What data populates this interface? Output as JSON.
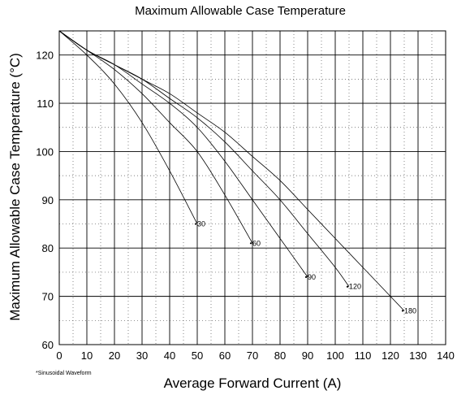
{
  "chart_data": {
    "type": "line",
    "title": "Maximum Allowable Case Temperature",
    "xlabel": "Average Forward Current (A)",
    "ylabel": "Maximum Allowable Case Temperature (°C)",
    "xlim": [
      0,
      140
    ],
    "ylim": [
      60,
      125
    ],
    "x_ticks": [
      "0",
      "10",
      "20",
      "30",
      "40",
      "50",
      "60",
      "70",
      "80",
      "90",
      "100",
      "110",
      "120",
      "130",
      "140"
    ],
    "y_ticks": [
      "60",
      "70",
      "80",
      "90",
      "100",
      "110",
      "120"
    ],
    "grid": true,
    "footnote": "*Sinusoidal Waveform",
    "series": [
      {
        "name": "30",
        "label": "30",
        "x": [
          0,
          10,
          20,
          30,
          40,
          50
        ],
        "y": [
          125,
          120,
          114,
          106,
          96,
          85
        ]
      },
      {
        "name": "60",
        "label": "60",
        "x": [
          0,
          10,
          20,
          30,
          40,
          50,
          60,
          70
        ],
        "y": [
          125,
          121,
          117,
          112,
          106,
          100,
          91,
          81
        ]
      },
      {
        "name": "90",
        "label": "90",
        "x": [
          0,
          10,
          20,
          30,
          40,
          50,
          60,
          70,
          80,
          90
        ],
        "y": [
          125,
          121,
          118,
          114,
          110,
          105,
          98,
          90,
          82,
          74
        ]
      },
      {
        "name": "120",
        "label": "120",
        "x": [
          0,
          10,
          20,
          30,
          40,
          50,
          60,
          70,
          80,
          90,
          100,
          105
        ],
        "y": [
          125,
          121,
          118,
          115,
          111,
          107,
          102,
          96,
          90,
          83,
          76,
          72
        ]
      },
      {
        "name": "180",
        "label": "180",
        "x": [
          0,
          10,
          20,
          30,
          40,
          50,
          60,
          70,
          80,
          90,
          100,
          110,
          120,
          125
        ],
        "y": [
          125,
          121,
          118,
          115,
          112,
          108,
          104,
          99,
          94,
          88,
          82,
          76,
          70,
          67
        ]
      }
    ]
  }
}
